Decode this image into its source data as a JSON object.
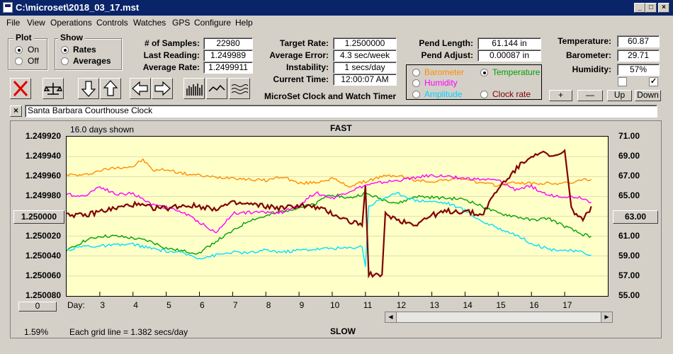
{
  "window": {
    "title": "C:\\microset\\2018_03_17.mst"
  },
  "menu": [
    "File",
    "View",
    "Operations",
    "Controls",
    "Watches",
    "GPS",
    "Configure",
    "Help"
  ],
  "plot_group": {
    "title": "Plot",
    "on": "On",
    "off": "Off",
    "selected": "On"
  },
  "show_group": {
    "title": "Show",
    "rates": "Rates",
    "averages": "Averages",
    "selected": "Rates"
  },
  "stats": {
    "samples_label": "# of Samples:",
    "samples": "22980",
    "last_label": "Last Reading:",
    "last": "1.249989",
    "avg_label": "Average Rate:",
    "avg": "1.2499911",
    "target_label": "Target Rate:",
    "target": "1.2500000",
    "error_label": "Average Error:",
    "error": "4.3 sec/week",
    "instab_label": "Instability:",
    "instab": "1 secs/day",
    "time_label": "Current Time:",
    "time": "12:00:07 AM",
    "app_title": "MicroSet Clock and Watch Timer",
    "pend_len_label": "Pend Length:",
    "pend_len": "61.144 in",
    "pend_adj_label": "Pend Adjust:",
    "pend_adj": "0.00087 in",
    "temp_label": "Temperature:",
    "temp": "60.87",
    "baro_label": "Barometer:",
    "baro": "29.71",
    "hum_label": "Humidity:",
    "hum": "57%"
  },
  "series_select": {
    "barometer": "Barometer",
    "temperature": "Temperature",
    "humidity": "Humidity",
    "amplitude": "Amplitude",
    "clock_rate": "Clock rate",
    "selected": "Temperature"
  },
  "adjust_buttons": {
    "plus": "+",
    "minus": "—",
    "up": "Up",
    "down": "Down"
  },
  "checkboxes": {
    "left_checked": false,
    "right_checked": true
  },
  "clock_name": "Santa Barbara Courthouse Clock",
  "chart": {
    "days_shown": "16.0 days shown",
    "top_label": "FAST",
    "bottom_label": "SLOW",
    "grid_note": "Each grid line = 1.382 secs/day",
    "percent": "1.59%",
    "center_button": "1.250000",
    "right_button": "63.00",
    "zero_button": "0",
    "day_label": "Day:"
  },
  "colors": {
    "barometer": "#ff8c00",
    "temperature": "#00a000",
    "humidity": "#ff00ff",
    "amplitude": "#00e0ff",
    "clock_rate": "#800000",
    "plot_bg": "#ffffc8"
  },
  "chart_data": {
    "type": "line",
    "x_label": "Day:",
    "x_ticks": [
      3,
      4,
      5,
      6,
      7,
      8,
      9,
      10,
      11,
      12,
      13,
      14,
      15,
      16,
      17
    ],
    "xlim": [
      2,
      18.3
    ],
    "left_axis": {
      "ticks": [
        "1.249920",
        "1.249940",
        "1.249960",
        "1.249980",
        "1.250000",
        "1.250020",
        "1.250040",
        "1.250060",
        "1.250080"
      ],
      "range": [
        1.24992,
        1.25008
      ],
      "inverted": true
    },
    "right_axis": {
      "ticks": [
        "71.00",
        "69.00",
        "67.00",
        "65.00",
        "63.00",
        "61.00",
        "59.00",
        "57.00",
        "55.00"
      ],
      "range": [
        55,
        71
      ]
    },
    "series": [
      {
        "name": "Barometer",
        "color": "#ff8c00",
        "x": [
          2,
          2.5,
          3,
          3.5,
          4,
          4.3,
          4.6,
          5,
          5.5,
          6,
          6.5,
          7,
          7.5,
          8,
          8.5,
          9,
          9.5,
          10,
          10.5,
          11,
          11.5,
          12,
          12.5,
          13,
          13.5,
          14,
          14.5,
          15,
          15.5,
          16,
          16.5,
          17,
          17.5,
          17.8
        ],
        "y": [
          67.2,
          67.1,
          67.6,
          67.9,
          68.0,
          68.7,
          67.6,
          67.7,
          67.3,
          67.1,
          66.9,
          66.9,
          66.7,
          66.6,
          67.0,
          66.3,
          66.4,
          66.8,
          66.0,
          66.5,
          67.0,
          67.1,
          66.6,
          66.5,
          66.7,
          66.8,
          66.3,
          66.1,
          66.4,
          66.3,
          66.3,
          66.3,
          66.6,
          66.7
        ]
      },
      {
        "name": "Temperature",
        "color": "#00a000",
        "x": [
          2,
          2.5,
          3,
          3.5,
          4,
          4.5,
          5,
          5.5,
          6,
          6.2,
          6.5,
          7,
          7.5,
          8,
          8.5,
          9,
          9.5,
          9.8,
          10,
          10.5,
          11,
          11.5,
          12,
          12.5,
          13,
          13.5,
          14,
          14.5,
          15,
          15.5,
          16,
          16.5,
          17,
          17.5,
          17.8
        ],
        "y": [
          59.5,
          60.5,
          61.0,
          61.0,
          60.8,
          60.5,
          59.8,
          59.5,
          59.3,
          59.8,
          60.5,
          61.5,
          62.6,
          63.0,
          63.5,
          63.9,
          64.2,
          65.0,
          65.2,
          64.8,
          65.3,
          64.7,
          64.3,
          65.0,
          64.9,
          64.8,
          64.7,
          64.0,
          63.3,
          63.0,
          62.6,
          62.8,
          62.0,
          61.2,
          61.0
        ]
      },
      {
        "name": "Humidity",
        "color": "#ff00ff",
        "x": [
          2,
          2.5,
          3,
          3.5,
          4,
          4.5,
          5,
          5.5,
          6,
          6.3,
          6.5,
          7,
          7.5,
          8,
          8.5,
          9,
          9.5,
          10,
          10.5,
          11,
          11.5,
          12,
          12.5,
          13,
          13.5,
          14,
          14.5,
          15,
          15.5,
          16,
          16.5,
          17,
          17.5,
          17.8
        ],
        "y": [
          65.2,
          65.0,
          66.0,
          65.2,
          65.3,
          64.3,
          63.9,
          63.4,
          62.4,
          61.8,
          61.3,
          63.3,
          63.4,
          63.4,
          63.4,
          64.1,
          65.4,
          64.8,
          65.5,
          66.1,
          66.4,
          66.6,
          66.9,
          67.1,
          67.0,
          66.8,
          66.7,
          66.6,
          65.7,
          66.0,
          65.1,
          65.0,
          64.9,
          64.4
        ]
      },
      {
        "name": "Amplitude",
        "color": "#00e0ff",
        "x": [
          2,
          2.5,
          3,
          3.5,
          4,
          4.5,
          5,
          5.5,
          6,
          6.5,
          7,
          7.5,
          8,
          8.5,
          9,
          9.5,
          10,
          10.5,
          10.9,
          11.0,
          11.1,
          11.5,
          12,
          12.5,
          13,
          13.5,
          14,
          14.5,
          15,
          15.5,
          16,
          16.5,
          17,
          17.5,
          17.8
        ],
        "y": [
          59.6,
          60.0,
          60.0,
          60.1,
          60.2,
          59.8,
          59.5,
          59.3,
          58.8,
          59.1,
          59.4,
          59.3,
          59.6,
          59.4,
          59.6,
          59.7,
          59.8,
          59.8,
          60.0,
          58.0,
          64.0,
          64.8,
          65.3,
          64.6,
          64.5,
          64.3,
          63.6,
          62.5,
          61.8,
          61.2,
          60.3,
          59.7,
          59.6,
          59.4,
          59.1
        ]
      },
      {
        "name": "Clock rate",
        "color": "#800000",
        "x": [
          2,
          2.5,
          3,
          3.5,
          4,
          4.5,
          5,
          5.5,
          6,
          6.5,
          7,
          7.5,
          8,
          8.5,
          9,
          9.5,
          10,
          10.5,
          10.9,
          11.0,
          11.1,
          11.5,
          11.6,
          12,
          12.5,
          13,
          13.5,
          14,
          14.5,
          15,
          15.5,
          16,
          16.3,
          16.6,
          17,
          17.2,
          17.4,
          17.6,
          17.8
        ],
        "y": [
          63.3,
          63.0,
          63.5,
          63.8,
          64.2,
          63.9,
          63.8,
          64.1,
          64.0,
          63.8,
          64.3,
          64.2,
          64.0,
          63.8,
          64.1,
          63.9,
          63.3,
          62.5,
          62.2,
          65.8,
          57.3,
          56.9,
          63.3,
          62.6,
          62.2,
          63.1,
          63.5,
          63.5,
          63.1,
          65.8,
          67.6,
          69.2,
          69.4,
          68.9,
          69.4,
          63.8,
          63.0,
          62.8,
          64.0
        ]
      }
    ]
  }
}
